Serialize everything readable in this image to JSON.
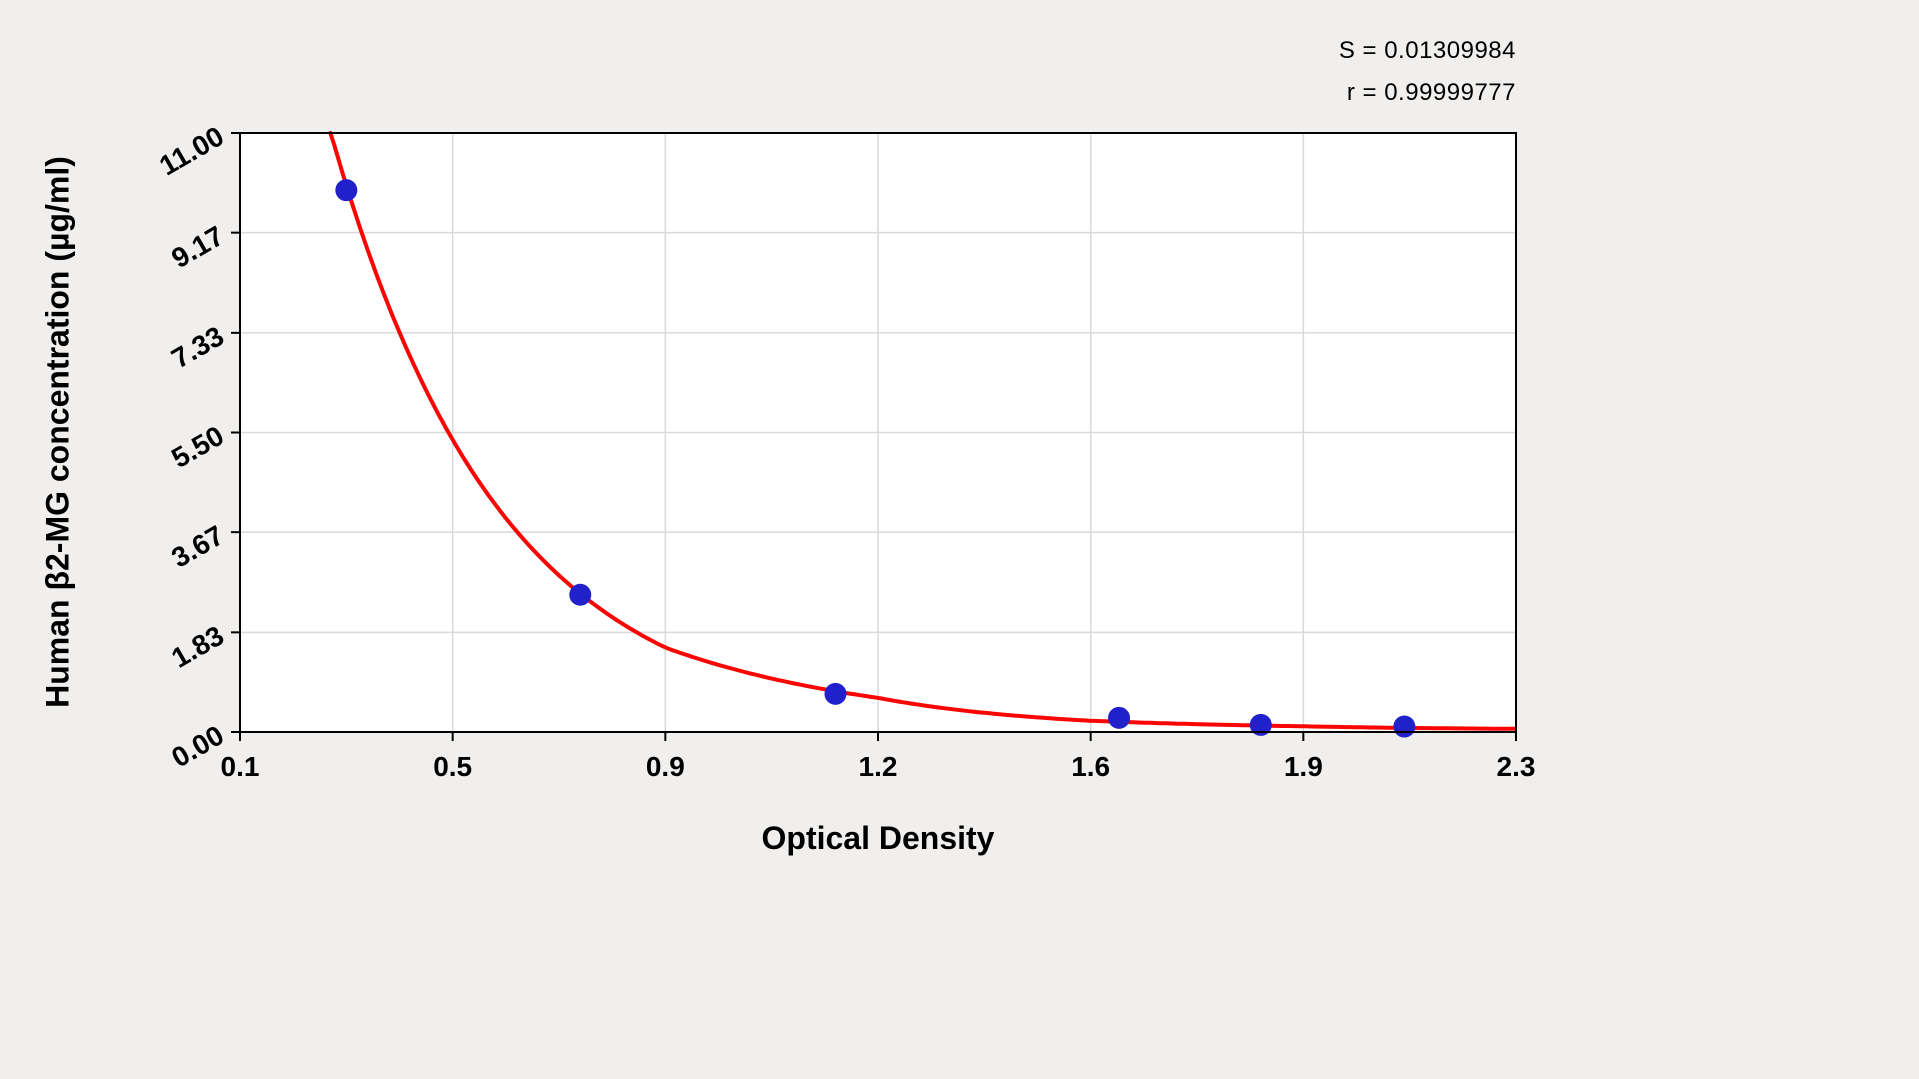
{
  "page": {
    "background": "#f0efee"
  },
  "stats": {
    "s_label": "S = 0.01309984",
    "r_label": "r = 0.99999777"
  },
  "chart_data": {
    "type": "scatter",
    "title": "",
    "xlabel": "Optical Density",
    "ylabel": "Human β2-MG concentration (µg/ml)",
    "x_tick_labels": [
      "0.1",
      "0.5",
      "0.9",
      "1.2",
      "1.6",
      "1.9",
      "2.3"
    ],
    "x_ticks": [
      0.1,
      0.5,
      0.9,
      1.2,
      1.6,
      1.9,
      2.3
    ],
    "y_tick_labels": [
      "0.00",
      "1.83",
      "3.67",
      "5.50",
      "7.33",
      "9.17",
      "11.00"
    ],
    "y_ticks": [
      0.0,
      1.83,
      3.67,
      5.5,
      7.33,
      9.17,
      11.0
    ],
    "ylim": [
      0,
      11
    ],
    "xlim": [
      0.1,
      2.3
    ],
    "grid": true,
    "legend": "none",
    "points": [
      {
        "x": 0.3,
        "y": 9.95
      },
      {
        "x": 0.74,
        "y": 2.52
      },
      {
        "x": 1.14,
        "y": 0.7
      },
      {
        "x": 1.64,
        "y": 0.26
      },
      {
        "x": 1.84,
        "y": 0.13
      },
      {
        "x": 2.09,
        "y": 0.1
      }
    ],
    "fit_curve": {
      "model": "exponential_decay",
      "A": 10.0,
      "k": 3.15,
      "x0": 0.3,
      "c": 0.04,
      "x_start": 0.27,
      "x_end": 2.3
    },
    "colors": {
      "curve": "#f90502",
      "points": "#2121cc",
      "grid": "#d9d9d9",
      "axis": "#000000",
      "plot_background": "#ffffff"
    }
  }
}
